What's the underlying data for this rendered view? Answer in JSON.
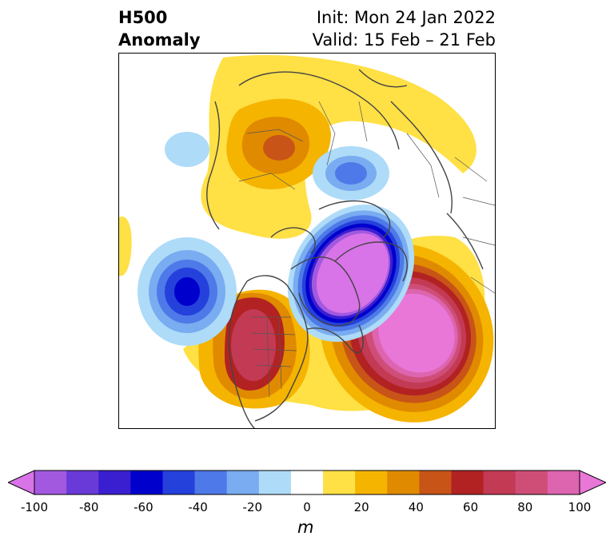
{
  "header": {
    "title_line1": "H500",
    "title_line2": "Anomaly",
    "init_text": "Init: Mon 24 Jan 2022",
    "valid_text": "Valid: 15 Feb – 21 Feb"
  },
  "colorbar": {
    "ticks": [
      "-100",
      "-80",
      "-60",
      "-40",
      "-20",
      "0",
      "20",
      "40",
      "60",
      "80",
      "100"
    ],
    "unit": "m",
    "colors": [
      "#d873e8",
      "#a259e0",
      "#6a3ad8",
      "#3a1fd0",
      "#0000cc",
      "#2541dc",
      "#4e79e8",
      "#79acf0",
      "#aedbf8",
      "#ffffff",
      "#ffe045",
      "#f5b400",
      "#e08a00",
      "#c85418",
      "#b22222",
      "#c33a55",
      "#cf4e78",
      "#dd64ae",
      "#e877d8"
    ]
  },
  "map": {
    "region": "Northern Hemisphere polar stereographic",
    "features": [
      {
        "name": "anomaly-low-hudson-bay",
        "sign": "negative",
        "peak": -100
      },
      {
        "name": "anomaly-high-north-atlantic",
        "sign": "positive",
        "peak": 100
      },
      {
        "name": "anomaly-high-western-north-america",
        "sign": "positive",
        "peak": 80
      },
      {
        "name": "anomaly-low-north-pacific",
        "sign": "negative",
        "peak": -60
      },
      {
        "name": "anomaly-low-barents-kara",
        "sign": "negative",
        "peak": -40
      },
      {
        "name": "anomaly-high-east-siberia",
        "sign": "positive",
        "peak": 60
      }
    ]
  }
}
